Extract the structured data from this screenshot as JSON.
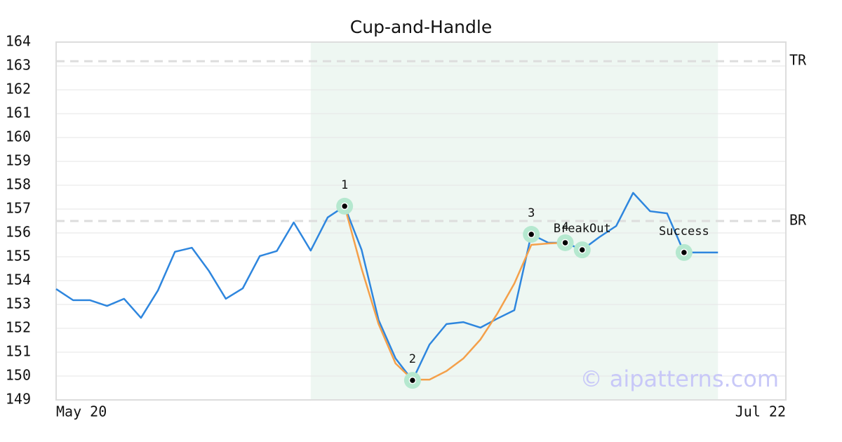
{
  "chart_data": {
    "type": "line",
    "title": "Cup-and-Handle",
    "xlim": [
      0,
      43
    ],
    "xticks": [
      {
        "value": 0,
        "label": "May 20"
      },
      {
        "value": 43,
        "label": "Jul 22"
      }
    ],
    "ylim": [
      149,
      164
    ],
    "yticks": [
      149,
      150,
      151,
      152,
      153,
      154,
      155,
      156,
      157,
      158,
      159,
      160,
      161,
      162,
      163,
      164
    ],
    "grid": true,
    "highlight": [
      15,
      39
    ],
    "levels": [
      {
        "label": "TR",
        "value": 163.2
      },
      {
        "label": "BR",
        "value": 156.5
      }
    ],
    "series": [
      {
        "color": "#2e86de",
        "x": [
          0,
          1,
          2,
          3,
          4,
          5,
          6,
          7,
          8,
          9,
          10,
          11,
          12,
          13,
          14,
          15,
          16,
          17,
          18,
          19,
          20,
          21,
          22,
          23,
          24,
          25,
          26,
          27,
          28,
          29,
          30,
          31,
          32,
          33,
          34,
          35,
          36,
          37,
          38,
          39
        ],
        "values": [
          153.65,
          153.18,
          153.18,
          152.94,
          153.24,
          152.44,
          153.59,
          155.21,
          155.38,
          154.41,
          153.24,
          153.68,
          155.03,
          155.24,
          156.44,
          155.26,
          156.65,
          157.12,
          155.29,
          152.35,
          150.74,
          149.82,
          151.32,
          152.18,
          152.26,
          152.03,
          152.41,
          152.76,
          155.94,
          155.59,
          155.59,
          155.29,
          155.82,
          156.29,
          157.68,
          156.91,
          156.82,
          155.18,
          155.18,
          155.18
        ]
      },
      {
        "color": "#f4a04a",
        "x": [
          17,
          18,
          19,
          20,
          21,
          22,
          23,
          24,
          25,
          26,
          27,
          28,
          29,
          30
        ],
        "values": [
          157.12,
          154.5,
          152.18,
          150.53,
          149.85,
          149.85,
          150.21,
          150.74,
          151.53,
          152.62,
          153.88,
          155.5,
          155.56,
          155.59
        ]
      }
    ],
    "points": [
      {
        "label": "1",
        "x": 17,
        "y": 157.12
      },
      {
        "label": "2",
        "x": 21,
        "y": 149.82
      },
      {
        "label": "3",
        "x": 28,
        "y": 155.94
      },
      {
        "label": "4",
        "x": 30,
        "y": 155.59
      },
      {
        "label": "BreakOut",
        "x": 31,
        "y": 155.29
      },
      {
        "label": "Success",
        "x": 37,
        "y": 155.18
      }
    ],
    "watermark": "© aipatterns.com"
  }
}
